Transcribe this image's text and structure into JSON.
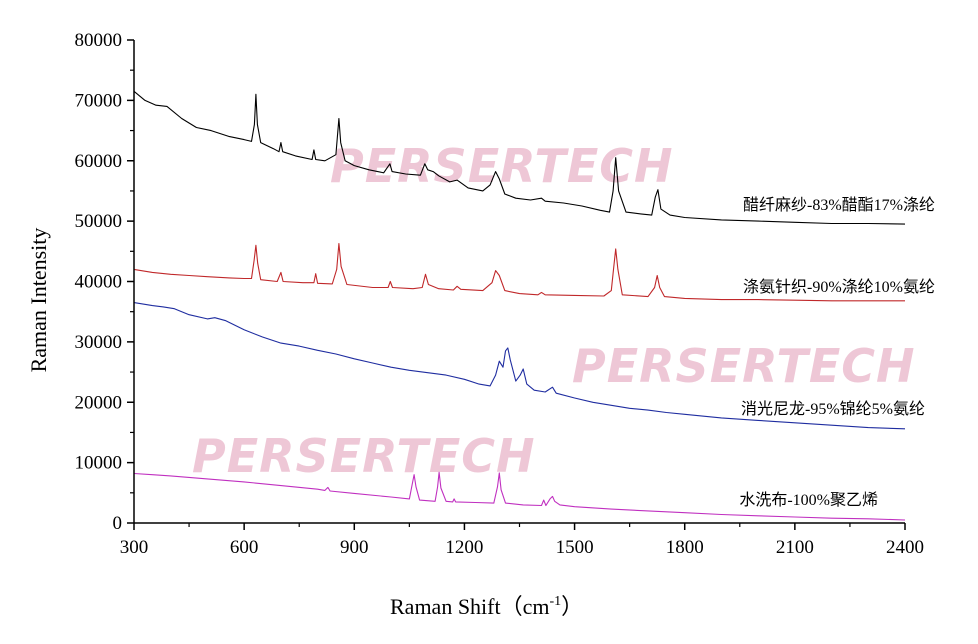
{
  "chart_data": {
    "type": "line",
    "title": "",
    "xlabel": "Raman Shift（cm",
    "xlabel_sup": "-1",
    "xlabel_close": "）",
    "ylabel": "Raman Intensity",
    "xlim": [
      300,
      2400
    ],
    "ylim": [
      0,
      80000
    ],
    "x_ticks": [
      300,
      600,
      900,
      1200,
      1500,
      1800,
      2100,
      2400
    ],
    "x_tick_labels": [
      "300",
      "600",
      "900",
      "1200",
      "1500",
      "1800",
      "2100",
      "2400"
    ],
    "y_ticks": [
      0,
      10000,
      20000,
      30000,
      40000,
      50000,
      60000,
      70000,
      80000
    ],
    "y_tick_labels": [
      "0",
      "10000",
      "20000",
      "30000",
      "40000",
      "50000",
      "60000",
      "70000",
      "80000"
    ],
    "grid": false,
    "watermark": "PERSERTECH",
    "series": [
      {
        "name": "醋纤麻纱-83%醋酯17%涤纶",
        "color": "#000000",
        "points": [
          [
            300,
            71500
          ],
          [
            330,
            70000
          ],
          [
            360,
            69200
          ],
          [
            390,
            69000
          ],
          [
            430,
            67000
          ],
          [
            470,
            65500
          ],
          [
            510,
            65000
          ],
          [
            560,
            64000
          ],
          [
            600,
            63500
          ],
          [
            620,
            63200
          ],
          [
            628,
            66000
          ],
          [
            632,
            71000
          ],
          [
            636,
            66000
          ],
          [
            645,
            63000
          ],
          [
            680,
            62000
          ],
          [
            695,
            61500
          ],
          [
            700,
            63000
          ],
          [
            705,
            61500
          ],
          [
            740,
            60800
          ],
          [
            785,
            60200
          ],
          [
            790,
            61800
          ],
          [
            795,
            60200
          ],
          [
            820,
            60000
          ],
          [
            850,
            61000
          ],
          [
            858,
            67000
          ],
          [
            863,
            63000
          ],
          [
            875,
            60000
          ],
          [
            900,
            59200
          ],
          [
            940,
            58500
          ],
          [
            980,
            58000
          ],
          [
            997,
            59500
          ],
          [
            1003,
            58200
          ],
          [
            1040,
            57800
          ],
          [
            1080,
            57600
          ],
          [
            1092,
            59500
          ],
          [
            1100,
            58500
          ],
          [
            1115,
            58200
          ],
          [
            1130,
            57500
          ],
          [
            1160,
            56500
          ],
          [
            1180,
            56800
          ],
          [
            1210,
            55500
          ],
          [
            1250,
            55000
          ],
          [
            1270,
            56000
          ],
          [
            1285,
            58200
          ],
          [
            1295,
            57000
          ],
          [
            1310,
            54500
          ],
          [
            1340,
            53800
          ],
          [
            1380,
            53500
          ],
          [
            1410,
            53800
          ],
          [
            1420,
            53300
          ],
          [
            1470,
            53000
          ],
          [
            1520,
            52500
          ],
          [
            1570,
            51800
          ],
          [
            1595,
            51500
          ],
          [
            1605,
            55000
          ],
          [
            1612,
            60500
          ],
          [
            1620,
            55000
          ],
          [
            1640,
            51500
          ],
          [
            1680,
            51200
          ],
          [
            1710,
            51000
          ],
          [
            1720,
            54000
          ],
          [
            1727,
            55200
          ],
          [
            1735,
            52000
          ],
          [
            1760,
            51000
          ],
          [
            1800,
            50600
          ],
          [
            1900,
            50200
          ],
          [
            2000,
            50000
          ],
          [
            2100,
            49800
          ],
          [
            2200,
            49600
          ],
          [
            2300,
            49600
          ],
          [
            2400,
            49500
          ]
        ]
      },
      {
        "name": "涤氨针织-90%涤纶10%氨纶",
        "color": "#c0282a",
        "points": [
          [
            300,
            42000
          ],
          [
            350,
            41500
          ],
          [
            400,
            41200
          ],
          [
            450,
            41000
          ],
          [
            500,
            40800
          ],
          [
            560,
            40600
          ],
          [
            600,
            40500
          ],
          [
            620,
            40500
          ],
          [
            627,
            43500
          ],
          [
            632,
            46000
          ],
          [
            637,
            43000
          ],
          [
            645,
            40300
          ],
          [
            690,
            40000
          ],
          [
            700,
            41500
          ],
          [
            706,
            40000
          ],
          [
            760,
            39800
          ],
          [
            790,
            39800
          ],
          [
            795,
            41300
          ],
          [
            800,
            39700
          ],
          [
            840,
            39600
          ],
          [
            852,
            42000
          ],
          [
            858,
            46300
          ],
          [
            864,
            42500
          ],
          [
            880,
            39500
          ],
          [
            950,
            39000
          ],
          [
            992,
            39000
          ],
          [
            998,
            40000
          ],
          [
            1004,
            39000
          ],
          [
            1060,
            38800
          ],
          [
            1085,
            39000
          ],
          [
            1094,
            41200
          ],
          [
            1102,
            39500
          ],
          [
            1130,
            38800
          ],
          [
            1170,
            38600
          ],
          [
            1180,
            39200
          ],
          [
            1190,
            38700
          ],
          [
            1250,
            38500
          ],
          [
            1275,
            39800
          ],
          [
            1285,
            41800
          ],
          [
            1295,
            41000
          ],
          [
            1310,
            38500
          ],
          [
            1350,
            38000
          ],
          [
            1400,
            37800
          ],
          [
            1410,
            38200
          ],
          [
            1420,
            37800
          ],
          [
            1500,
            37700
          ],
          [
            1580,
            37600
          ],
          [
            1600,
            38500
          ],
          [
            1606,
            42000
          ],
          [
            1612,
            45400
          ],
          [
            1618,
            42000
          ],
          [
            1630,
            37800
          ],
          [
            1700,
            37500
          ],
          [
            1718,
            39000
          ],
          [
            1725,
            41000
          ],
          [
            1732,
            39000
          ],
          [
            1745,
            37500
          ],
          [
            1800,
            37200
          ],
          [
            1900,
            37000
          ],
          [
            2000,
            37000
          ],
          [
            2100,
            36900
          ],
          [
            2200,
            36800
          ],
          [
            2300,
            36800
          ],
          [
            2400,
            36800
          ]
        ]
      },
      {
        "name": "消光尼龙-95%锦纶5%氨纶",
        "color": "#1f2da0",
        "points": [
          [
            300,
            36500
          ],
          [
            350,
            36000
          ],
          [
            380,
            35800
          ],
          [
            410,
            35500
          ],
          [
            450,
            34500
          ],
          [
            500,
            33800
          ],
          [
            520,
            34000
          ],
          [
            550,
            33500
          ],
          [
            600,
            32000
          ],
          [
            650,
            30800
          ],
          [
            700,
            29800
          ],
          [
            750,
            29300
          ],
          [
            800,
            28600
          ],
          [
            850,
            28000
          ],
          [
            900,
            27200
          ],
          [
            950,
            26500
          ],
          [
            1000,
            25800
          ],
          [
            1050,
            25300
          ],
          [
            1100,
            24900
          ],
          [
            1150,
            24500
          ],
          [
            1200,
            23800
          ],
          [
            1240,
            23000
          ],
          [
            1270,
            22700
          ],
          [
            1285,
            24500
          ],
          [
            1295,
            26800
          ],
          [
            1305,
            25800
          ],
          [
            1312,
            28500
          ],
          [
            1318,
            29000
          ],
          [
            1325,
            27000
          ],
          [
            1340,
            23500
          ],
          [
            1352,
            24500
          ],
          [
            1360,
            25500
          ],
          [
            1370,
            23000
          ],
          [
            1390,
            22000
          ],
          [
            1420,
            21700
          ],
          [
            1440,
            22500
          ],
          [
            1450,
            21500
          ],
          [
            1500,
            20700
          ],
          [
            1550,
            20000
          ],
          [
            1600,
            19500
          ],
          [
            1650,
            19000
          ],
          [
            1700,
            18700
          ],
          [
            1750,
            18300
          ],
          [
            1800,
            18000
          ],
          [
            1900,
            17400
          ],
          [
            2000,
            17000
          ],
          [
            2100,
            16600
          ],
          [
            2200,
            16200
          ],
          [
            2300,
            15800
          ],
          [
            2400,
            15600
          ]
        ]
      },
      {
        "name": "水洗布-100%聚乙烯",
        "color": "#c030c0",
        "points": [
          [
            300,
            8200
          ],
          [
            350,
            8000
          ],
          [
            400,
            7800
          ],
          [
            500,
            7300
          ],
          [
            600,
            6800
          ],
          [
            700,
            6200
          ],
          [
            800,
            5600
          ],
          [
            820,
            5400
          ],
          [
            828,
            5900
          ],
          [
            834,
            5300
          ],
          [
            900,
            4900
          ],
          [
            1000,
            4300
          ],
          [
            1050,
            4000
          ],
          [
            1058,
            6500
          ],
          [
            1063,
            8000
          ],
          [
            1068,
            6000
          ],
          [
            1078,
            3800
          ],
          [
            1120,
            3600
          ],
          [
            1127,
            6000
          ],
          [
            1131,
            8400
          ],
          [
            1136,
            5800
          ],
          [
            1150,
            3600
          ],
          [
            1168,
            3500
          ],
          [
            1172,
            4000
          ],
          [
            1176,
            3500
          ],
          [
            1230,
            3400
          ],
          [
            1280,
            3300
          ],
          [
            1290,
            6000
          ],
          [
            1295,
            8300
          ],
          [
            1300,
            5500
          ],
          [
            1312,
            3300
          ],
          [
            1360,
            3000
          ],
          [
            1410,
            2900
          ],
          [
            1416,
            3800
          ],
          [
            1422,
            2900
          ],
          [
            1433,
            4000
          ],
          [
            1440,
            4400
          ],
          [
            1446,
            3600
          ],
          [
            1460,
            3000
          ],
          [
            1500,
            2700
          ],
          [
            1600,
            2300
          ],
          [
            1700,
            2000
          ],
          [
            1800,
            1700
          ],
          [
            1900,
            1400
          ],
          [
            2000,
            1200
          ],
          [
            2100,
            1000
          ],
          [
            2200,
            800
          ],
          [
            2300,
            700
          ],
          [
            2400,
            500
          ]
        ]
      }
    ]
  }
}
